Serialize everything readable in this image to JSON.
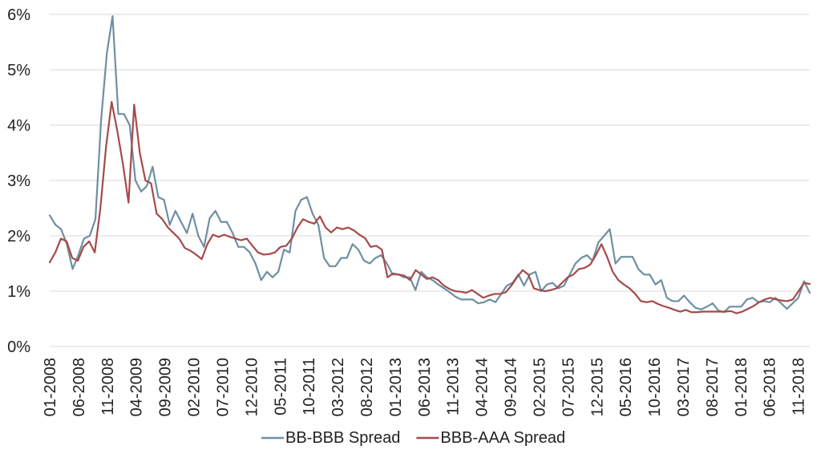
{
  "chart_data": {
    "type": "line",
    "title": "",
    "xlabel": "",
    "ylabel": "",
    "y_unit": "%",
    "ylim": [
      0,
      6
    ],
    "y_ticks": [
      "0%",
      "1%",
      "2%",
      "3%",
      "4%",
      "5%",
      "6%"
    ],
    "x_start": "2008-01",
    "x_end": "2019-01",
    "x_tick_labels": [
      "01-2008",
      "06-2008",
      "11-2008",
      "04-2009",
      "09-2009",
      "02-2010",
      "07-2010",
      "12-2010",
      "05-2011",
      "10-2011",
      "03-2012",
      "08-2012",
      "01-2013",
      "06-2013",
      "11-2013",
      "04-2014",
      "09-2014",
      "02-2015",
      "07-2015",
      "12-2015",
      "05-2016",
      "10-2016",
      "03-2017",
      "08-2017",
      "01-2018",
      "06-2018",
      "11-2018"
    ],
    "grid": "horizontal",
    "legend_position": "bottom",
    "series": [
      {
        "name": "BB-BBB Spread",
        "color": "#6F8FA2",
        "values": [
          2.37,
          2.2,
          2.12,
          1.85,
          1.4,
          1.65,
          1.95,
          2.0,
          2.3,
          4.1,
          5.3,
          5.97,
          4.2,
          4.2,
          4.0,
          3.0,
          2.8,
          2.9,
          3.25,
          2.7,
          2.65,
          2.2,
          2.45,
          2.25,
          2.05,
          2.4,
          2.0,
          1.8,
          2.32,
          2.45,
          2.25,
          2.25,
          2.05,
          1.8,
          1.8,
          1.7,
          1.5,
          1.2,
          1.35,
          1.25,
          1.35,
          1.75,
          1.7,
          2.45,
          2.65,
          2.7,
          2.4,
          2.2,
          1.6,
          1.45,
          1.45,
          1.6,
          1.6,
          1.85,
          1.75,
          1.55,
          1.5,
          1.6,
          1.65,
          1.5,
          1.3,
          1.3,
          1.25,
          1.25,
          1.02,
          1.35,
          1.25,
          1.2,
          1.12,
          1.05,
          0.98,
          0.9,
          0.85,
          0.85,
          0.85,
          0.78,
          0.8,
          0.85,
          0.8,
          0.95,
          1.1,
          1.15,
          1.3,
          1.1,
          1.3,
          1.35,
          1.0,
          1.12,
          1.15,
          1.05,
          1.1,
          1.3,
          1.5,
          1.6,
          1.65,
          1.55,
          1.88,
          2.0,
          2.12,
          1.5,
          1.62,
          1.62,
          1.62,
          1.4,
          1.3,
          1.3,
          1.12,
          1.2,
          0.88,
          0.82,
          0.82,
          0.92,
          0.8,
          0.7,
          0.67,
          0.72,
          0.78,
          0.65,
          0.62,
          0.72,
          0.72,
          0.72,
          0.85,
          0.88,
          0.8,
          0.82,
          0.8,
          0.88,
          0.78,
          0.68,
          0.78,
          0.88,
          1.18,
          0.97
        ]
      },
      {
        "name": "BBB-AAA Spread",
        "color": "#A64A4A",
        "values": [
          1.52,
          1.7,
          1.95,
          1.9,
          1.6,
          1.55,
          1.8,
          1.9,
          1.7,
          2.5,
          3.6,
          4.42,
          3.9,
          3.3,
          2.6,
          4.37,
          3.5,
          3.0,
          2.95,
          2.4,
          2.3,
          2.15,
          2.05,
          1.95,
          1.78,
          1.73,
          1.66,
          1.58,
          1.85,
          2.02,
          1.98,
          2.02,
          1.98,
          1.95,
          1.92,
          1.95,
          1.82,
          1.7,
          1.66,
          1.67,
          1.7,
          1.8,
          1.82,
          1.95,
          2.15,
          2.3,
          2.25,
          2.22,
          2.35,
          2.15,
          2.06,
          2.15,
          2.12,
          2.15,
          2.1,
          2.02,
          1.96,
          1.8,
          1.82,
          1.75,
          1.25,
          1.32,
          1.3,
          1.28,
          1.2,
          1.38,
          1.3,
          1.22,
          1.25,
          1.2,
          1.1,
          1.04,
          1.0,
          0.99,
          0.97,
          1.02,
          0.95,
          0.88,
          0.92,
          0.95,
          0.95,
          0.98,
          1.1,
          1.25,
          1.38,
          1.3,
          1.05,
          1.02,
          1.0,
          1.02,
          1.05,
          1.15,
          1.25,
          1.3,
          1.4,
          1.42,
          1.48,
          1.65,
          1.85,
          1.62,
          1.35,
          1.2,
          1.12,
          1.05,
          0.95,
          0.82,
          0.8,
          0.82,
          0.77,
          0.73,
          0.7,
          0.66,
          0.63,
          0.66,
          0.62,
          0.62,
          0.63,
          0.63,
          0.63,
          0.63,
          0.63,
          0.64,
          0.6,
          0.63,
          0.68,
          0.73,
          0.8,
          0.85,
          0.88,
          0.85,
          0.83,
          0.82,
          0.85,
          1.0,
          1.15,
          1.13
        ]
      }
    ]
  }
}
